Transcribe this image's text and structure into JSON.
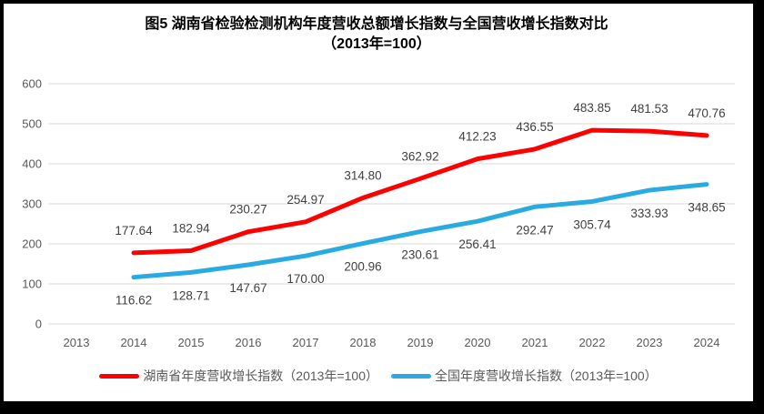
{
  "title": {
    "line1": "图5 湖南省检验检测机构年度营收总额增长指数与全国营收增长指数对比",
    "line2": "（2013年=100）"
  },
  "chart_data": {
    "type": "line",
    "categories": [
      "2013",
      "2014",
      "2015",
      "2016",
      "2017",
      "2018",
      "2019",
      "2020",
      "2021",
      "2022",
      "2023",
      "2024"
    ],
    "series": [
      {
        "name": "湖南省年度营收增长指数（2013年=100）",
        "color": "#FF0000",
        "start_index": 1,
        "label_position": "above",
        "values": [
          177.64,
          182.94,
          230.27,
          254.97,
          314.8,
          362.92,
          412.23,
          436.55,
          483.85,
          481.53,
          470.76
        ]
      },
      {
        "name": "全国年度营收增长指数（2013年=100）",
        "color": "#29ABE2",
        "start_index": 1,
        "label_position": "below",
        "values": [
          116.62,
          128.71,
          147.67,
          170.0,
          200.96,
          230.61,
          256.41,
          292.47,
          305.74,
          333.93,
          348.65
        ]
      }
    ],
    "ylim": [
      0,
      600
    ],
    "yticks": [
      0,
      100,
      200,
      300,
      400,
      500,
      600
    ],
    "grid": true,
    "legend_position": "bottom",
    "colors": {
      "gridline": "#D9D9D9",
      "axis_text": "#595959",
      "data_label": "#404040",
      "frame_border": "#000000"
    }
  }
}
